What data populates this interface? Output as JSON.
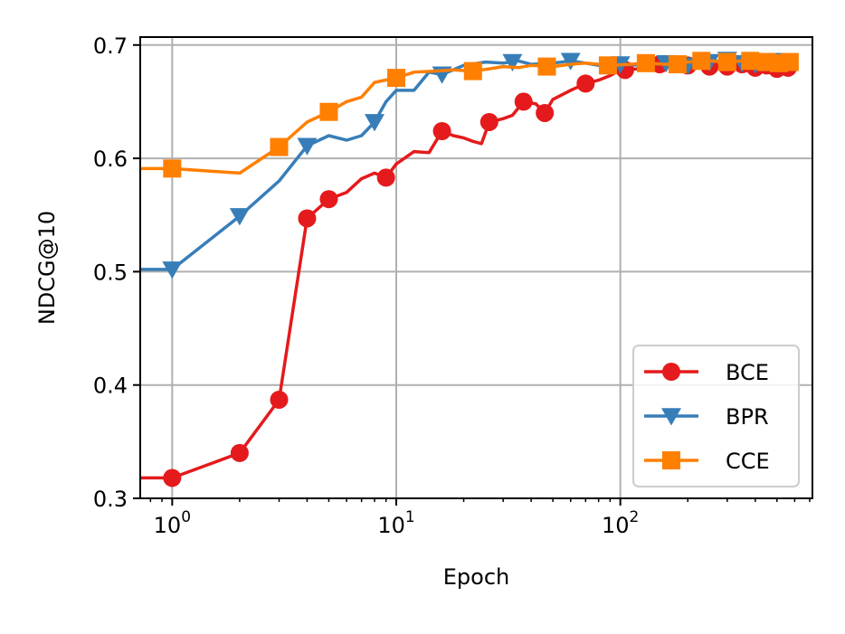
{
  "chart_data": {
    "type": "line",
    "xlabel": "Epoch",
    "ylabel": "NDCG@10",
    "xscale": "log",
    "xlim": [
      0.72,
      720
    ],
    "ylim": [
      0.3,
      0.707
    ],
    "yticks": [
      {
        "value": 0.3,
        "label": "0.3"
      },
      {
        "value": 0.4,
        "label": "0.4"
      },
      {
        "value": 0.5,
        "label": "0.5"
      },
      {
        "value": 0.6,
        "label": "0.6"
      },
      {
        "value": 0.7,
        "label": "0.7"
      }
    ],
    "xticks": [
      {
        "value": 1,
        "base": "10",
        "exp": "0"
      },
      {
        "value": 10,
        "base": "10",
        "exp": "1"
      },
      {
        "value": 100,
        "base": "10",
        "exp": "2"
      }
    ],
    "grid": true,
    "legend_position": "bottom-right",
    "series": [
      {
        "name": "BCE",
        "color": "#e41a1c",
        "marker": "circle",
        "x": [
          0.72,
          1,
          2,
          3,
          4,
          5,
          6,
          7,
          8,
          9,
          10,
          12,
          14,
          16,
          18,
          20,
          22,
          24,
          26,
          30,
          33,
          37,
          42,
          46,
          50,
          60,
          70,
          80,
          90,
          100,
          120,
          140,
          160,
          200,
          250,
          300,
          350,
          400,
          450,
          500,
          550,
          600
        ],
        "y": [
          0.318,
          0.318,
          0.34,
          0.387,
          0.547,
          0.564,
          0.57,
          0.582,
          0.587,
          0.583,
          0.595,
          0.606,
          0.605,
          0.624,
          0.62,
          0.618,
          0.615,
          0.613,
          0.632,
          0.635,
          0.638,
          0.65,
          0.648,
          0.64,
          0.652,
          0.66,
          0.666,
          0.669,
          0.673,
          0.678,
          0.679,
          0.683,
          0.684,
          0.682,
          0.681,
          0.681,
          0.683,
          0.68,
          0.682,
          0.679,
          0.681,
          0.68
        ],
        "markers_x": [
          1,
          2,
          3,
          4,
          5,
          9,
          16,
          26,
          37,
          46,
          70,
          105,
          150,
          200,
          250,
          300,
          350,
          400,
          450,
          500,
          560
        ],
        "markers_y": [
          0.318,
          0.34,
          0.387,
          0.547,
          0.564,
          0.583,
          0.624,
          0.632,
          0.65,
          0.64,
          0.666,
          0.678,
          0.683,
          0.682,
          0.681,
          0.681,
          0.683,
          0.68,
          0.682,
          0.679,
          0.68
        ]
      },
      {
        "name": "BPR",
        "color": "#377eb8",
        "marker": "triangle-down",
        "x": [
          0.72,
          1,
          2,
          3,
          4,
          5,
          6,
          7,
          8,
          9,
          10,
          12,
          14,
          16,
          20,
          25,
          30,
          35,
          40,
          50,
          60,
          70,
          80,
          100,
          130,
          160,
          200,
          250,
          300,
          350,
          400,
          450,
          500,
          550,
          600
        ],
        "y": [
          0.502,
          0.502,
          0.549,
          0.58,
          0.611,
          0.62,
          0.616,
          0.62,
          0.632,
          0.65,
          0.66,
          0.66,
          0.676,
          0.674,
          0.682,
          0.685,
          0.684,
          0.686,
          0.683,
          0.684,
          0.686,
          0.684,
          0.682,
          0.683,
          0.682,
          0.684,
          0.682,
          0.685,
          0.687,
          0.684,
          0.683,
          0.685,
          0.686,
          0.684,
          0.685
        ],
        "markers_x": [
          1,
          2,
          4,
          8,
          16,
          33,
          60,
          100,
          160,
          200,
          250,
          300,
          350,
          400,
          450,
          500,
          560
        ],
        "markers_y": [
          0.502,
          0.549,
          0.611,
          0.632,
          0.674,
          0.685,
          0.686,
          0.683,
          0.684,
          0.682,
          0.685,
          0.687,
          0.684,
          0.683,
          0.685,
          0.686,
          0.685
        ]
      },
      {
        "name": "CCE",
        "color": "#ff7f00",
        "marker": "square",
        "x": [
          0.72,
          1,
          2,
          3,
          4,
          5,
          6,
          7,
          8,
          10,
          12,
          15,
          18,
          22,
          26,
          30,
          35,
          40,
          50,
          60,
          70,
          90,
          110,
          130,
          160,
          200,
          250,
          300,
          350,
          400,
          450,
          500,
          550,
          600
        ],
        "y": [
          0.591,
          0.591,
          0.587,
          0.61,
          0.632,
          0.641,
          0.65,
          0.654,
          0.667,
          0.671,
          0.676,
          0.677,
          0.678,
          0.677,
          0.679,
          0.681,
          0.68,
          0.682,
          0.681,
          0.683,
          0.684,
          0.682,
          0.683,
          0.684,
          0.683,
          0.685,
          0.686,
          0.685,
          0.686,
          0.685,
          0.686,
          0.684,
          0.686,
          0.685
        ],
        "markers_x": [
          1,
          3,
          5,
          10,
          22,
          47,
          88,
          130,
          180,
          230,
          300,
          380,
          450,
          510,
          570
        ],
        "markers_y": [
          0.591,
          0.61,
          0.641,
          0.671,
          0.677,
          0.681,
          0.682,
          0.684,
          0.683,
          0.686,
          0.685,
          0.686,
          0.685,
          0.684,
          0.685
        ]
      }
    ]
  }
}
